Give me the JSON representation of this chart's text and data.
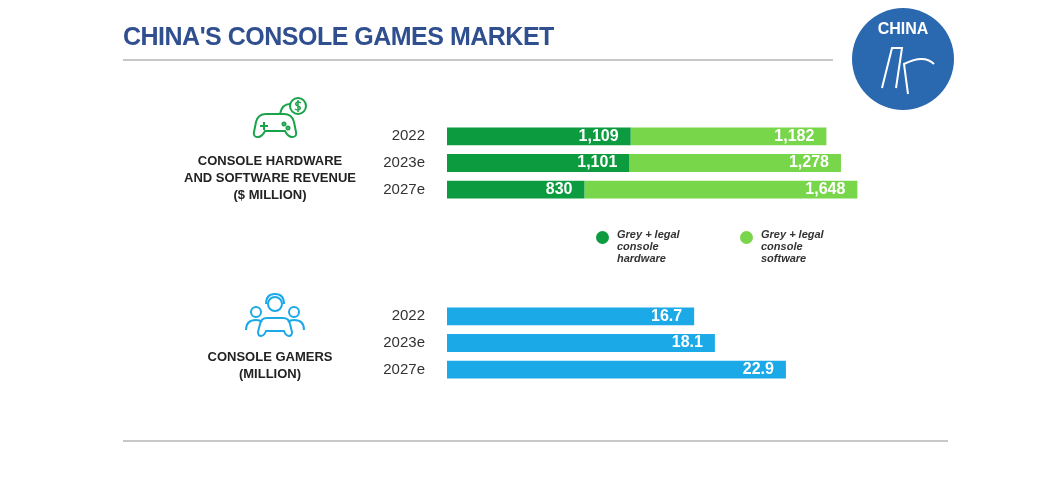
{
  "chart_data": [
    {
      "type": "bar",
      "title": "CHINA'S CONSOLE GAMES MARKET",
      "ylabel": "CONSOLE HARDWARE\nAND SOFTWARE REVENUE\n($ MILLION)",
      "annotations": [
        "CHINA"
      ],
      "orientation": "horizontal",
      "stacked": true,
      "categories": [
        "2022",
        "2023e",
        "2027e"
      ],
      "tick_labels": "y",
      "grid": false,
      "legend": "bottom right",
      "series": [
        {
          "name": "Grey + legal console hardware",
          "color": "#0c9b3f",
          "values": [
            1109,
            1101,
            830
          ],
          "value_labels": [
            "1,109",
            "1,101",
            "830"
          ]
        },
        {
          "name": "Grey + legal console software",
          "color": "#78d64b",
          "values": [
            1182,
            1278,
            1648
          ],
          "value_labels": [
            "1,182",
            "1,278",
            "1,648"
          ]
        }
      ]
    },
    {
      "type": "bar",
      "ylabel": "CONSOLE GAMERS\n(MILLION)",
      "orientation": "horizontal",
      "categories": [
        "2022",
        "2023e",
        "2027e"
      ],
      "tick_labels": "y",
      "grid": false,
      "data_labels": true,
      "series": [
        {
          "color": "#1ba9e8",
          "values": [
            16.7,
            18.1,
            22.9
          ]
        }
      ]
    }
  ]
}
